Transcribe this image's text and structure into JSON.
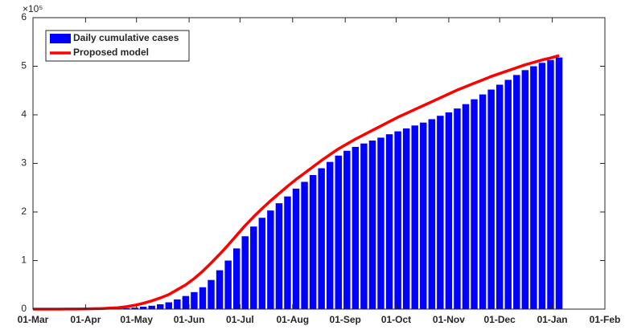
{
  "chart_data": {
    "type": "bar-line",
    "y_exponent": "×10⁵",
    "x": [
      0,
      5,
      10,
      15,
      20,
      25,
      30,
      35,
      40,
      45,
      50,
      55,
      60,
      65,
      70,
      75,
      80,
      85,
      90,
      95,
      100,
      105,
      110,
      115,
      120,
      125,
      130,
      135,
      140,
      145,
      150,
      155,
      160,
      165,
      170,
      175,
      180,
      185,
      190,
      195,
      200,
      205,
      210,
      215,
      220,
      225,
      230,
      235,
      240,
      245,
      250,
      255,
      260,
      265,
      270,
      275,
      280,
      285,
      290,
      295,
      300,
      305,
      310
    ],
    "series": [
      {
        "name": "Daily cumulative cases",
        "color": "#0000ff",
        "mark": "bar",
        "values": [
          0,
          0,
          0,
          0,
          0,
          0,
          0,
          0.003,
          0.005,
          0.008,
          0.012,
          0.02,
          0.03,
          0.05,
          0.07,
          0.1,
          0.14,
          0.2,
          0.27,
          0.35,
          0.45,
          0.6,
          0.8,
          1.0,
          1.25,
          1.5,
          1.7,
          1.88,
          2.03,
          2.18,
          2.32,
          2.48,
          2.62,
          2.76,
          2.9,
          3.03,
          3.16,
          3.26,
          3.34,
          3.41,
          3.47,
          3.53,
          3.6,
          3.66,
          3.72,
          3.78,
          3.84,
          3.91,
          3.98,
          4.05,
          4.13,
          4.22,
          4.32,
          4.42,
          4.52,
          4.62,
          4.72,
          4.82,
          4.92,
          5.0,
          5.07,
          5.13,
          5.18
        ]
      },
      {
        "name": "Proposed model",
        "color": "#ff0000",
        "mark": "line",
        "values": [
          0,
          0,
          0,
          0,
          0.002,
          0.003,
          0.005,
          0.008,
          0.012,
          0.02,
          0.03,
          0.05,
          0.08,
          0.12,
          0.17,
          0.23,
          0.3,
          0.4,
          0.5,
          0.63,
          0.78,
          0.95,
          1.13,
          1.32,
          1.52,
          1.72,
          1.9,
          2.07,
          2.23,
          2.38,
          2.53,
          2.67,
          2.8,
          2.93,
          3.06,
          3.18,
          3.3,
          3.4,
          3.5,
          3.59,
          3.68,
          3.77,
          3.86,
          3.95,
          4.03,
          4.11,
          4.19,
          4.27,
          4.35,
          4.43,
          4.51,
          4.58,
          4.65,
          4.72,
          4.79,
          4.85,
          4.91,
          4.97,
          5.03,
          5.08,
          5.13,
          5.17,
          5.22
        ]
      }
    ],
    "xlim": [
      0,
      337
    ],
    "xticks": [
      {
        "value": 0,
        "label": "01-Mar"
      },
      {
        "value": 31,
        "label": "01-Apr"
      },
      {
        "value": 61,
        "label": "01-May"
      },
      {
        "value": 92,
        "label": "01-Jun"
      },
      {
        "value": 122,
        "label": "01-Jul"
      },
      {
        "value": 153,
        "label": "01-Aug"
      },
      {
        "value": 184,
        "label": "01-Sep"
      },
      {
        "value": 214,
        "label": "01-Oct"
      },
      {
        "value": 245,
        "label": "01-Nov"
      },
      {
        "value": 275,
        "label": "01-Dec"
      },
      {
        "value": 306,
        "label": "01-Jan"
      },
      {
        "value": 337,
        "label": "01-Feb"
      }
    ],
    "ylim": [
      0,
      6
    ],
    "yticks": [
      0,
      1,
      2,
      3,
      4,
      5,
      6
    ],
    "legend": "upper-left"
  }
}
